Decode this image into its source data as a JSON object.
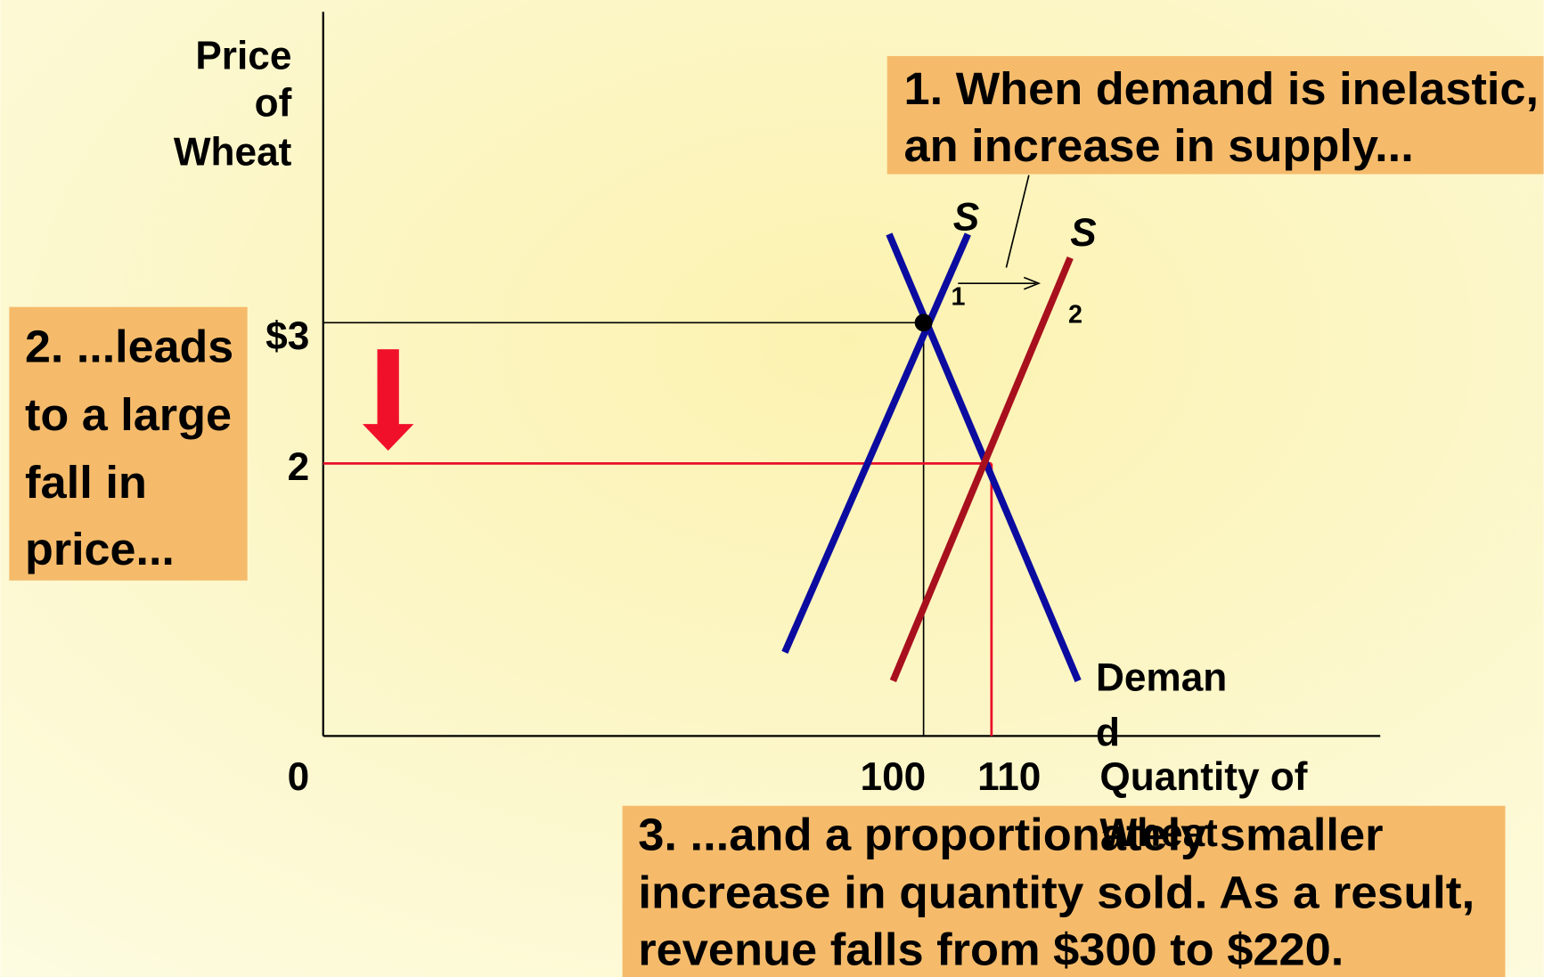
{
  "axes": {
    "y_label": [
      "Price",
      "of",
      "Wheat"
    ],
    "x_label": [
      "Quantity of",
      "Wheat"
    ],
    "origin": "0",
    "price_ticks": [
      "$3",
      "2"
    ],
    "quantity_ticks": [
      "100",
      "110"
    ]
  },
  "curves": {
    "supply1": {
      "label": "S",
      "subscript": "1"
    },
    "supply2": {
      "label": "S",
      "subscript": "2"
    },
    "demand": {
      "label": [
        "Deman",
        "d"
      ]
    }
  },
  "callouts": [
    {
      "lines": [
        "1. When demand is inelastic,",
        "an increase in supply..."
      ]
    },
    {
      "lines": [
        "2. ...leads",
        "to a large",
        "fall in",
        "price..."
      ]
    },
    {
      "lines": [
        "3. ...and a proportionately smaller",
        "increase in quantity sold.  As a result,",
        "revenue falls from $300 to $220."
      ]
    }
  ]
}
